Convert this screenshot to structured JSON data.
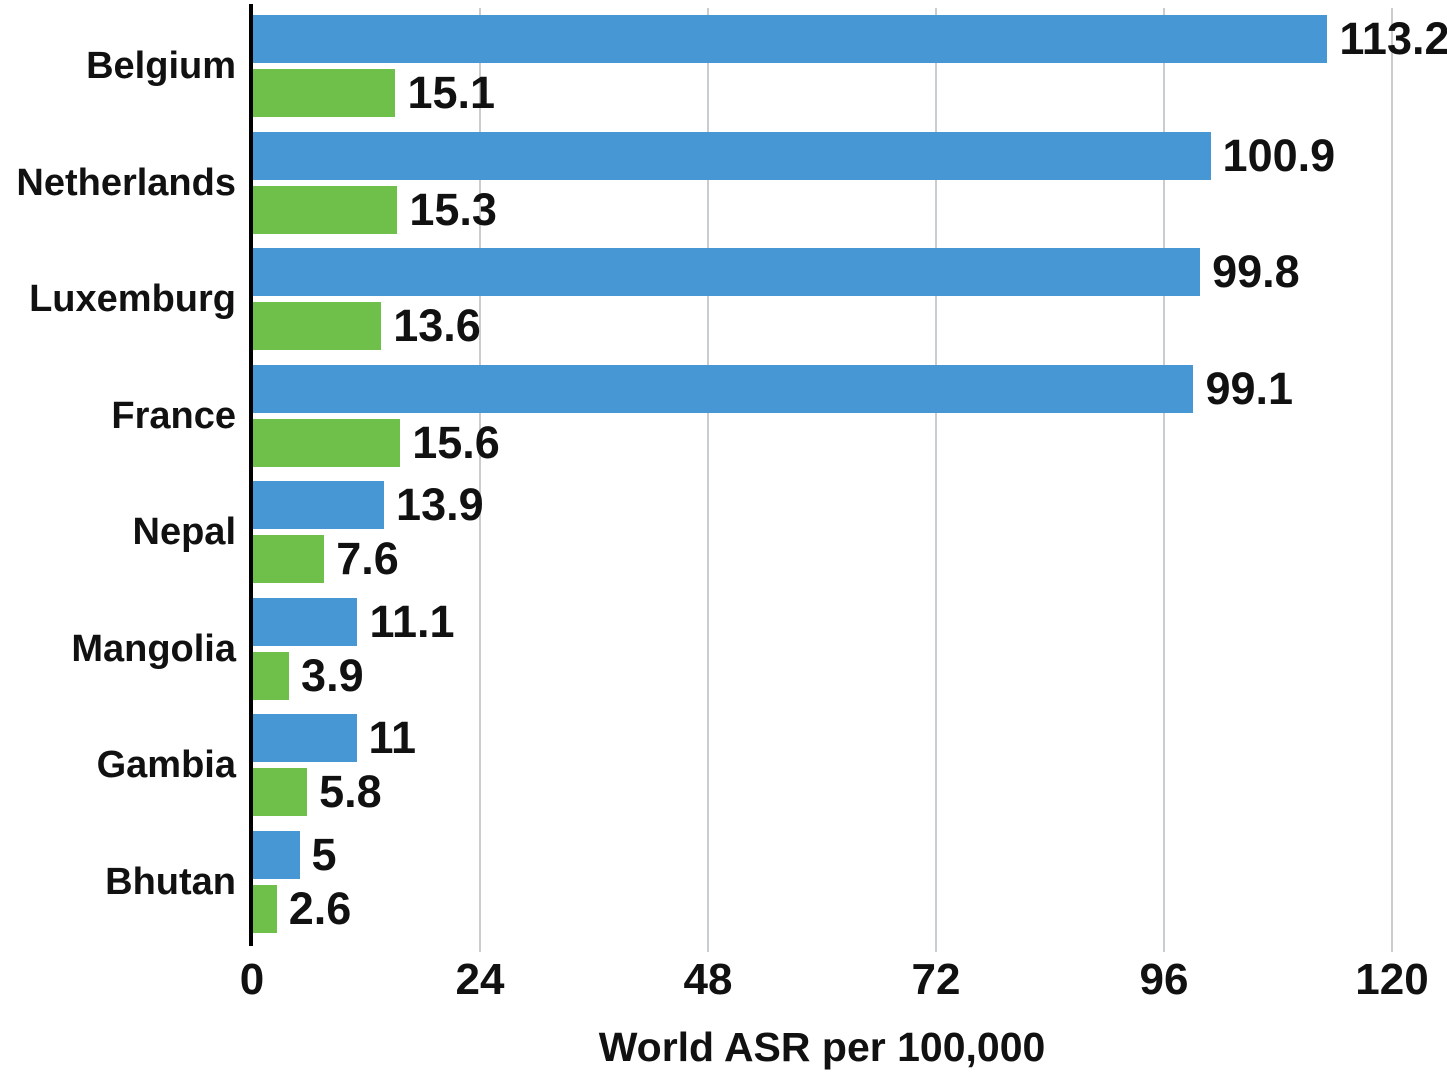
{
  "chart_data": {
    "type": "bar",
    "orientation": "horizontal",
    "title": "",
    "xlabel": "World ASR per 100,000",
    "ylabel": "",
    "categories": [
      "Belgium",
      "Netherlands",
      "Luxemburg",
      "France",
      "Nepal",
      "Mangolia",
      "Gambia",
      "Bhutan"
    ],
    "series": [
      {
        "name": "blue-series",
        "color": "#4697d3",
        "values": [
          113.2,
          100.9,
          99.8,
          99.1,
          13.9,
          11.1,
          11,
          5
        ]
      },
      {
        "name": "green-series",
        "color": "#6ec04b",
        "values": [
          15.1,
          15.3,
          13.6,
          15.6,
          7.6,
          3.9,
          5.8,
          2.6
        ]
      }
    ],
    "value_labels": [
      [
        "113.2",
        "15.1"
      ],
      [
        "100.9",
        "15.3"
      ],
      [
        "99.8",
        "13.6"
      ],
      [
        "99.1",
        "15.6"
      ],
      [
        "13.9",
        "7.6"
      ],
      [
        "11.1",
        "3.9"
      ],
      [
        "11",
        "5.8"
      ],
      [
        "5",
        "2.6"
      ]
    ],
    "x_ticks": [
      "0",
      "24",
      "48",
      "72",
      "96",
      "120"
    ],
    "xlim": [
      0,
      125.8
    ],
    "grid": true,
    "legend": false,
    "colors": {
      "gridline": "#c9cdd0",
      "axis": "#000000",
      "text": "#111111",
      "background": "#ffffff"
    }
  }
}
